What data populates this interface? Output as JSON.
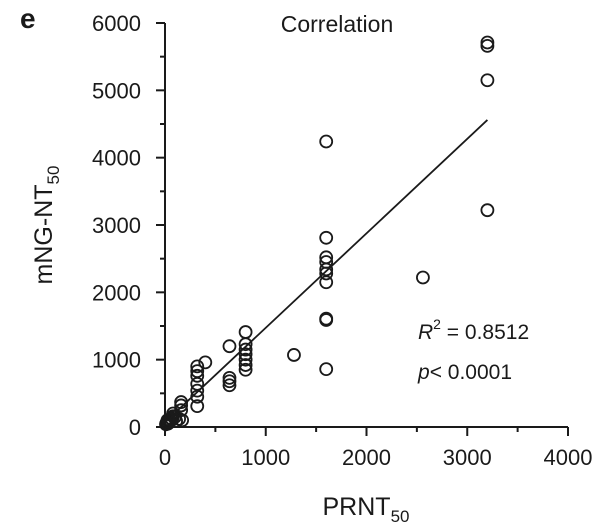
{
  "panel_letter": "e",
  "chart_data": {
    "type": "scatter",
    "title": "Correlation",
    "xlabel": {
      "main": "PRNT",
      "subscript": "50"
    },
    "ylabel": {
      "main": "mNG-NT",
      "subscript": "50"
    },
    "xlim": [
      0,
      4000
    ],
    "ylim": [
      0,
      6000
    ],
    "x_ticks": [
      0,
      1000,
      2000,
      3000,
      4000
    ],
    "y_ticks": [
      0,
      1000,
      2000,
      3000,
      4000,
      5000,
      6000
    ],
    "x_minor_ticks": [
      500,
      1500,
      2500,
      3500
    ],
    "y_minor_ticks": [
      500,
      1500,
      2500,
      3500,
      4500,
      5500
    ],
    "grid": false,
    "fit_line": {
      "x": [
        0,
        3200
      ],
      "y": [
        70,
        4560
      ]
    },
    "annotation": {
      "r2_symbol": "R",
      "r2_superscript": "2",
      "r2_text": " = 0.8512",
      "p_symbol": "p",
      "p_text": "< 0.0001"
    },
    "points": [
      [
        10,
        40
      ],
      [
        15,
        60
      ],
      [
        20,
        70
      ],
      [
        25,
        100
      ],
      [
        30,
        50
      ],
      [
        40,
        80
      ],
      [
        50,
        100
      ],
      [
        60,
        130
      ],
      [
        70,
        110
      ],
      [
        80,
        160
      ],
      [
        80,
        200
      ],
      [
        100,
        150
      ],
      [
        110,
        90
      ],
      [
        140,
        120
      ],
      [
        160,
        250
      ],
      [
        160,
        320
      ],
      [
        160,
        370
      ],
      [
        170,
        100
      ],
      [
        320,
        310
      ],
      [
        320,
        450
      ],
      [
        320,
        540
      ],
      [
        320,
        640
      ],
      [
        320,
        760
      ],
      [
        320,
        830
      ],
      [
        320,
        900
      ],
      [
        400,
        960
      ],
      [
        640,
        620
      ],
      [
        640,
        680
      ],
      [
        640,
        730
      ],
      [
        640,
        1200
      ],
      [
        800,
        850
      ],
      [
        800,
        920
      ],
      [
        800,
        1000
      ],
      [
        800,
        1080
      ],
      [
        800,
        1150
      ],
      [
        800,
        1230
      ],
      [
        800,
        1410
      ],
      [
        1280,
        1070
      ],
      [
        1600,
        860
      ],
      [
        1600,
        1590
      ],
      [
        1600,
        1610
      ],
      [
        1600,
        2150
      ],
      [
        1600,
        2280
      ],
      [
        1600,
        2340
      ],
      [
        1600,
        2450
      ],
      [
        1600,
        2520
      ],
      [
        1600,
        2810
      ],
      [
        1600,
        4240
      ],
      [
        2560,
        2220
      ],
      [
        3200,
        3220
      ],
      [
        3200,
        5150
      ],
      [
        3200,
        5660
      ],
      [
        3200,
        5710
      ]
    ]
  }
}
